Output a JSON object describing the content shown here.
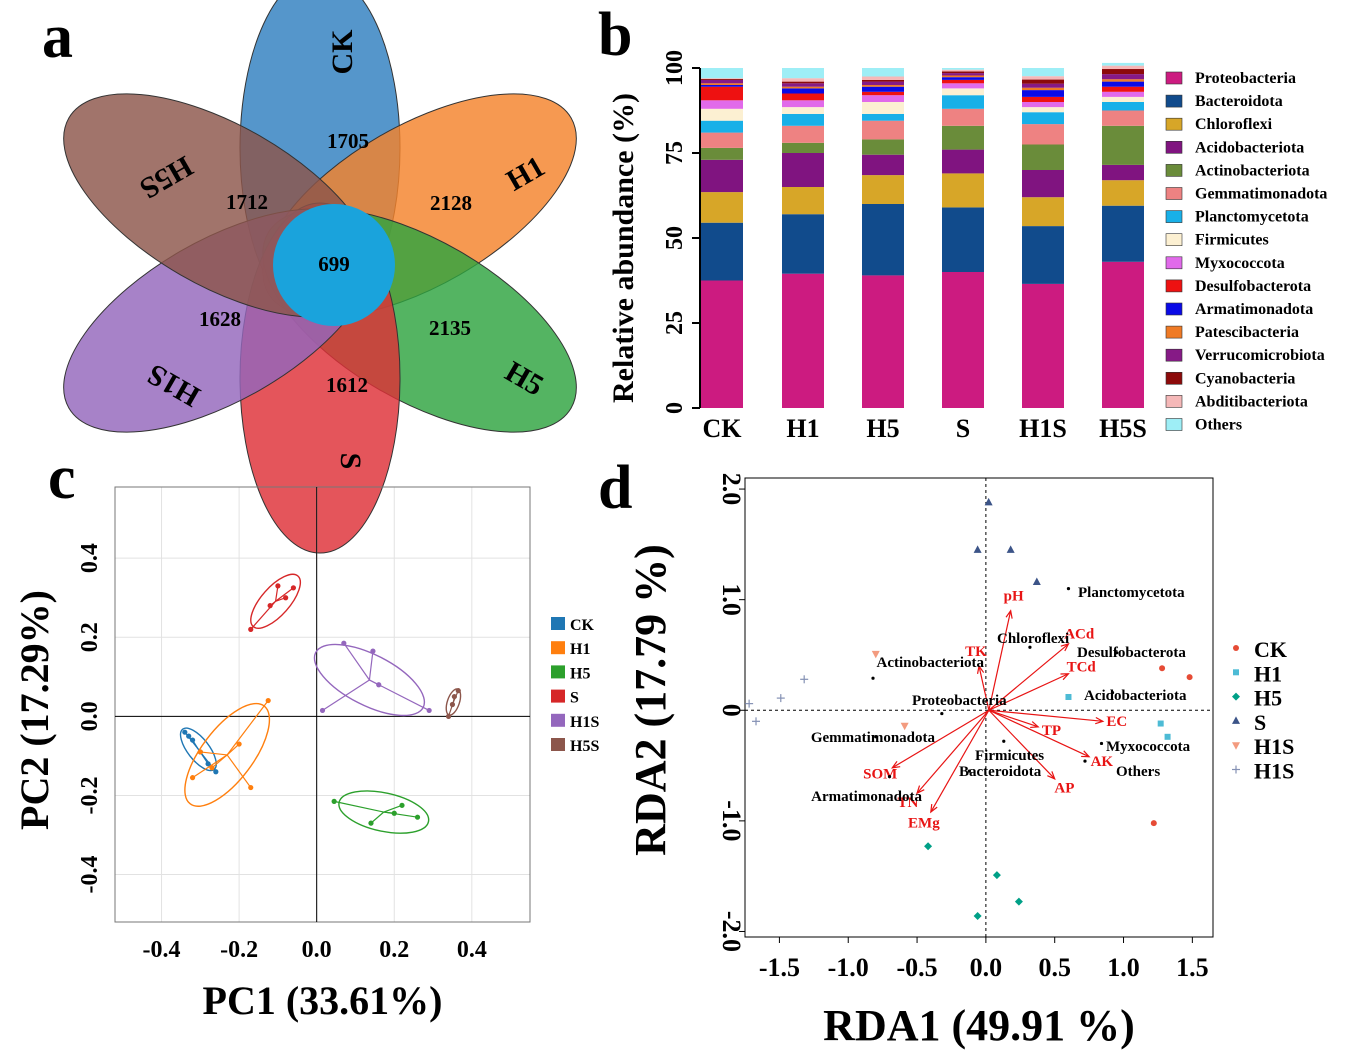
{
  "panel_labels": [
    "a",
    "b",
    "c",
    "d"
  ],
  "chart_data": [
    {
      "panel": "a",
      "type": "other",
      "title": "",
      "sets": [
        {
          "name": "CK",
          "unique": 1705,
          "color": "#2f7fbf"
        },
        {
          "name": "H1",
          "unique": 2128,
          "color": "#f4832b"
        },
        {
          "name": "H5",
          "unique": 2135,
          "color": "#2ea340"
        },
        {
          "name": "S",
          "unique": 1612,
          "color": "#de2f37"
        },
        {
          "name": "H1S",
          "unique": 1628,
          "color": "#9466bc"
        },
        {
          "name": "H5S",
          "unique": 1712,
          "color": "#8c564b"
        }
      ],
      "core": 699,
      "core_color": "#1aa3dc"
    },
    {
      "panel": "b",
      "type": "bar",
      "stacked": true,
      "ylabel": "Relative abundance (%)",
      "xlabel": "",
      "ylim": [
        0,
        100
      ],
      "yticks": [
        "0",
        "25",
        "50",
        "75",
        "100"
      ],
      "categories": [
        "CK",
        "H1",
        "H5",
        "S",
        "H1S",
        "H5S"
      ],
      "legend_position": "right",
      "series": [
        {
          "name": "Proteobacteria",
          "color": "#cc1b80",
          "values": [
            37.5,
            39.5,
            39,
            40,
            36.5,
            43
          ]
        },
        {
          "name": "Bacteroidota",
          "color": "#114b8c",
          "values": [
            17,
            17.5,
            21,
            19,
            17,
            16.5
          ]
        },
        {
          "name": "Chloroflexi",
          "color": "#d7a628",
          "values": [
            9,
            8,
            8.5,
            10,
            8.5,
            7.5
          ]
        },
        {
          "name": "Acidobacteriota",
          "color": "#801480",
          "values": [
            9.5,
            10,
            6,
            7,
            8,
            4.5
          ]
        },
        {
          "name": "Actinobacteriota",
          "color": "#6a8c3a",
          "values": [
            3.5,
            3,
            4.5,
            7,
            7.5,
            11.5
          ]
        },
        {
          "name": "Gemmatimonadota",
          "color": "#ee8282",
          "values": [
            4.5,
            5,
            5.5,
            5,
            6,
            4.5
          ]
        },
        {
          "name": "Planctomycetota",
          "color": "#18b0e8",
          "values": [
            3.5,
            3.5,
            2,
            4,
            3.5,
            2.5
          ]
        },
        {
          "name": "Firmicutes",
          "color": "#fcf0d2",
          "values": [
            3.5,
            2,
            3.5,
            2,
            1.5,
            1.5
          ]
        },
        {
          "name": "Myxococcota",
          "color": "#e16aea",
          "values": [
            2.5,
            2,
            2,
            1.5,
            1.5,
            1.5
          ]
        },
        {
          "name": "Desulfobacterota",
          "color": "#ee1111",
          "values": [
            4,
            2,
            1,
            1,
            1.5,
            1.5
          ]
        },
        {
          "name": "Armatimonadota",
          "color": "#0a0ae6",
          "values": [
            0.5,
            1.5,
            1.5,
            0.8,
            2,
            1.5
          ]
        },
        {
          "name": "Patescibacteria",
          "color": "#ef7a25",
          "values": [
            0.5,
            0.5,
            0.5,
            0.5,
            0.7,
            0.7
          ]
        },
        {
          "name": "Verrucomicrobiota",
          "color": "#861a86",
          "values": [
            1,
            1,
            1,
            0.7,
            1.2,
            1.5
          ]
        },
        {
          "name": "Cyanobacteria",
          "color": "#8c0a0a",
          "values": [
            0.3,
            0.5,
            0.5,
            0.5,
            1.2,
            1.5
          ]
        },
        {
          "name": "Abditibacteriota",
          "color": "#f5b8b8",
          "values": [
            0.2,
            1,
            1,
            0.5,
            1,
            1
          ]
        },
        {
          "name": "Others",
          "color": "#9eeef6",
          "values": [
            3,
            3,
            2.5,
            0.5,
            2.4,
            0.8
          ]
        }
      ]
    },
    {
      "panel": "c",
      "type": "scatter",
      "xlabel": "PC1 (33.61%)",
      "ylabel": "PC2 (17.29%)",
      "xlim": [
        -0.52,
        0.55
      ],
      "ylim": [
        -0.52,
        0.58
      ],
      "xticks": [
        -0.4,
        -0.2,
        0.0,
        0.2,
        0.4
      ],
      "yticks": [
        -0.4,
        -0.2,
        0.0,
        0.2,
        0.4
      ],
      "xtick_labels": [
        "-0.4",
        "-0.2",
        "0.0",
        "0.2",
        "0.4"
      ],
      "ytick_labels": [
        "-0.4",
        "-0.2",
        "0.0",
        "0.2",
        "0.4"
      ],
      "grid": true,
      "legend_position": "right",
      "series": [
        {
          "name": "CK",
          "color": "#1f77b4",
          "points": [
            [
              -0.34,
              -0.04
            ],
            [
              -0.33,
              -0.05
            ],
            [
              -0.32,
              -0.06
            ],
            [
              -0.3,
              -0.09
            ],
            [
              -0.28,
              -0.12
            ],
            [
              -0.26,
              -0.14
            ]
          ]
        },
        {
          "name": "H1",
          "color": "#ff7f0e",
          "points": [
            [
              -0.32,
              -0.155
            ],
            [
              -0.3,
              -0.09
            ],
            [
              -0.2,
              -0.07
            ],
            [
              -0.17,
              -0.18
            ],
            [
              -0.125,
              0.04
            ],
            [
              -0.27,
              -0.13
            ]
          ]
        },
        {
          "name": "H5",
          "color": "#2ca02c",
          "points": [
            [
              0.045,
              -0.215
            ],
            [
              0.14,
              -0.27
            ],
            [
              0.26,
              -0.255
            ],
            [
              0.22,
              -0.225
            ],
            [
              0.2,
              -0.245
            ]
          ]
        },
        {
          "name": "S",
          "color": "#d62728",
          "points": [
            [
              -0.17,
              0.22
            ],
            [
              -0.1,
              0.33
            ],
            [
              -0.06,
              0.325
            ],
            [
              -0.12,
              0.28
            ],
            [
              -0.08,
              0.3
            ]
          ]
        },
        {
          "name": "H1S",
          "color": "#9467bd",
          "points": [
            [
              0.015,
              0.015
            ],
            [
              0.07,
              0.185
            ],
            [
              0.145,
              0.165
            ],
            [
              0.29,
              0.015
            ],
            [
              0.16,
              0.08
            ]
          ]
        },
        {
          "name": "H5S",
          "color": "#8c564b",
          "points": [
            [
              0.34,
              0.0
            ],
            [
              0.355,
              0.05
            ],
            [
              0.365,
              0.065
            ],
            [
              0.35,
              0.03
            ]
          ]
        }
      ]
    },
    {
      "panel": "d",
      "type": "scatter",
      "xlabel": "RDA1 (49.91 %)",
      "ylabel": "RDA2 (17.79 %)",
      "xlim": [
        -1.75,
        1.65
      ],
      "ylim": [
        -2.05,
        2.1
      ],
      "xticks": [
        -1.5,
        -1.0,
        -0.5,
        0.0,
        0.5,
        1.0,
        1.5
      ],
      "yticks": [
        -2.0,
        -1.0,
        0.0,
        1.0,
        2.0
      ],
      "xtick_labels": [
        "-1.5",
        "-1.0",
        "-0.5",
        "0.0",
        "0.5",
        "1.0",
        "1.5"
      ],
      "ytick_labels": [
        "-2.0",
        "-1.0",
        "0",
        "1.0",
        "2.0"
      ],
      "grid": false,
      "legend_position": "right",
      "series": [
        {
          "name": "CK",
          "color": "#e64b35",
          "marker": "circle",
          "points": [
            [
              1.28,
              0.38
            ],
            [
              1.48,
              0.3
            ],
            [
              1.22,
              -1.02
            ]
          ]
        },
        {
          "name": "H1",
          "color": "#4dbbd5",
          "marker": "square",
          "points": [
            [
              1.27,
              -0.12
            ],
            [
              1.32,
              -0.24
            ],
            [
              0.6,
              0.12
            ]
          ]
        },
        {
          "name": "H5",
          "color": "#00a087",
          "marker": "diamond",
          "points": [
            [
              -0.42,
              -1.23
            ],
            [
              0.08,
              -1.49
            ],
            [
              -0.06,
              -1.86
            ],
            [
              0.24,
              -1.73
            ]
          ]
        },
        {
          "name": "S",
          "color": "#3c5488",
          "marker": "triangle",
          "points": [
            [
              0.02,
              1.88
            ],
            [
              -0.06,
              1.45
            ],
            [
              0.18,
              1.45
            ],
            [
              0.37,
              1.16
            ]
          ]
        },
        {
          "name": "H1S",
          "color": "#f39b7f",
          "marker": "triangle-down",
          "points": [
            [
              -0.8,
              0.51
            ],
            [
              -0.59,
              -0.14
            ]
          ]
        },
        {
          "name": "H1S",
          "color": "#8491b4",
          "marker": "plus",
          "points": [
            [
              -1.72,
              0.06
            ],
            [
              -1.49,
              0.11
            ],
            [
              -1.32,
              0.28
            ],
            [
              -1.67,
              -0.1
            ]
          ]
        }
      ],
      "vectors": [
        {
          "label": "pH",
          "x": 0.18,
          "y": 0.9
        },
        {
          "label": "ACd",
          "x": 0.6,
          "y": 0.6
        },
        {
          "label": "TCd",
          "x": 0.6,
          "y": 0.33
        },
        {
          "label": "TK",
          "x": -0.05,
          "y": 0.4
        },
        {
          "label": "EC",
          "x": 0.85,
          "y": -0.1
        },
        {
          "label": "TP",
          "x": 0.38,
          "y": -0.15
        },
        {
          "label": "AK",
          "x": 0.75,
          "y": -0.42
        },
        {
          "label": "AP",
          "x": 0.5,
          "y": -0.62
        },
        {
          "label": "SOM",
          "x": -0.68,
          "y": -0.52
        },
        {
          "label": "TN",
          "x": -0.5,
          "y": -0.75
        },
        {
          "label": "EMg",
          "x": -0.4,
          "y": -0.92
        }
      ],
      "taxa": [
        {
          "label": "Planctomycetota",
          "x": 0.6,
          "y": 1.1
        },
        {
          "label": "Chloroflexi",
          "x": 0.32,
          "y": 0.57
        },
        {
          "label": "Desulfobacterota",
          "x": 0.95,
          "y": 0.52
        },
        {
          "label": "Actinobacteriota",
          "x": -0.82,
          "y": 0.29
        },
        {
          "label": "Acidobacteriota",
          "x": 0.92,
          "y": 0.16
        },
        {
          "label": "Proteobacteria",
          "x": -0.32,
          "y": -0.03
        },
        {
          "label": "Gemmatimonadota",
          "x": -0.8,
          "y": -0.24
        },
        {
          "label": "Firmicutes",
          "x": 0.13,
          "y": -0.28
        },
        {
          "label": "Myxococcota",
          "x": 0.84,
          "y": -0.3
        },
        {
          "label": "Bacteroidota",
          "x": -0.12,
          "y": -0.55
        },
        {
          "label": "Others",
          "x": 0.72,
          "y": -0.46
        },
        {
          "label": "Armatimonadota",
          "x": -0.7,
          "y": -0.6
        }
      ]
    }
  ]
}
